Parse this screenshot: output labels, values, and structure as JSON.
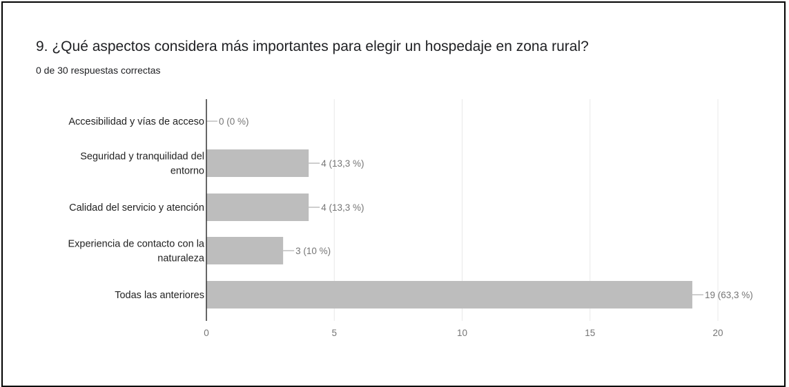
{
  "question": {
    "title": "9. ¿Qué aspectos considera más importantes para elegir un hospedaje en zona rural?",
    "subtitle": "0 de 30 respuestas correctas"
  },
  "colors": {
    "bar": "#bdbdbd",
    "grid": "#e8e8e8",
    "axis": "#333333",
    "label_line": "#9e9e9e"
  },
  "chart_data": {
    "type": "bar",
    "orientation": "horizontal",
    "categories": [
      [
        "Accesibilidad y vías de acceso"
      ],
      [
        "Seguridad y tranquilidad del",
        "entorno"
      ],
      [
        "Calidad del servicio y atención"
      ],
      [
        "Experiencia de contacto con la",
        "naturaleza"
      ],
      [
        "Todas las anteriores"
      ]
    ],
    "values": [
      0,
      4,
      4,
      3,
      19
    ],
    "data_labels": [
      "0 (0 %)",
      "4 (13,3 %)",
      "4 (13,3 %)",
      "3 (10 %)",
      "19 (63,3 %)"
    ],
    "xlim": [
      0,
      20
    ],
    "xticks": [
      0,
      5,
      10,
      15,
      20
    ],
    "grid": true,
    "legend": "none"
  }
}
